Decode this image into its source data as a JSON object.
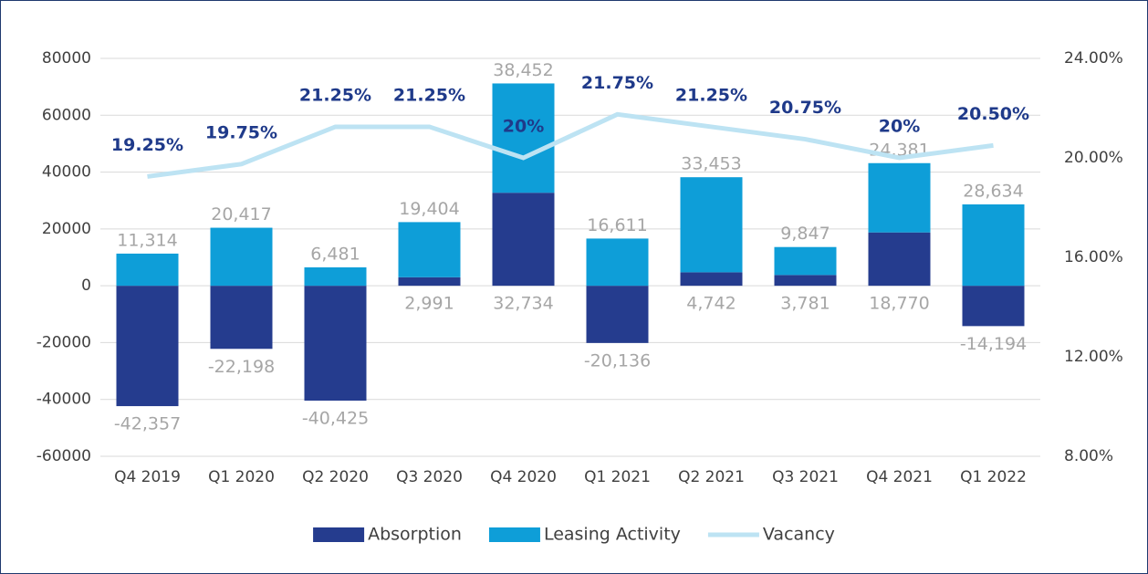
{
  "chart_data": {
    "type": "bar",
    "stacked": true,
    "categories": [
      "Q4 2019",
      "Q1 2020",
      "Q2 2020",
      "Q3 2020",
      "Q4 2020",
      "Q1 2021",
      "Q2 2021",
      "Q3 2021",
      "Q4 2021",
      "Q1 2022"
    ],
    "series": [
      {
        "name": "Absorption",
        "color": "#253c8e",
        "values": [
          -42357,
          -22198,
          -40425,
          2991,
          32734,
          -20136,
          4742,
          3781,
          18770,
          -14194
        ],
        "value_labels": [
          "-42,357",
          "-22,198",
          "-40,425",
          "2,991",
          "32,734",
          "-20,136",
          "4,742",
          "3,781",
          "18,770",
          "-14,194"
        ]
      },
      {
        "name": "Leasing Activity",
        "color": "#0e9ed8",
        "values": [
          11314,
          20417,
          6481,
          19404,
          38452,
          16611,
          33453,
          9847,
          24381,
          28634
        ],
        "value_labels": [
          "11,314",
          "20,417",
          "6,481",
          "19,404",
          "38,452",
          "16,611",
          "33,453",
          "9,847",
          "24,381",
          "28,634"
        ]
      },
      {
        "name": "Vacancy",
        "color": "#bde3f3",
        "type": "line",
        "axis": "y2",
        "values": [
          19.25,
          19.75,
          21.25,
          21.25,
          20,
          21.75,
          21.25,
          20.75,
          20,
          20.5
        ],
        "value_labels": [
          "19.25%",
          "19.75%",
          "21.25%",
          "21.25%",
          "20%",
          "21.75%",
          "21.25%",
          "20.75%",
          "20%",
          "20.50%"
        ]
      }
    ],
    "ylim": [
      -60000,
      80000
    ],
    "yticks": [
      -60000,
      -40000,
      -20000,
      0,
      20000,
      40000,
      60000,
      80000
    ],
    "y2lim": [
      8,
      24
    ],
    "y2ticks": [
      {
        "value": 8,
        "label": "8.00%"
      },
      {
        "value": 12,
        "label": "12.00%"
      },
      {
        "value": 16,
        "label": "16.00%"
      },
      {
        "value": 20,
        "label": "20.00%"
      },
      {
        "value": 24,
        "label": "24.00%"
      }
    ],
    "grid": true,
    "legend": "bottom"
  }
}
